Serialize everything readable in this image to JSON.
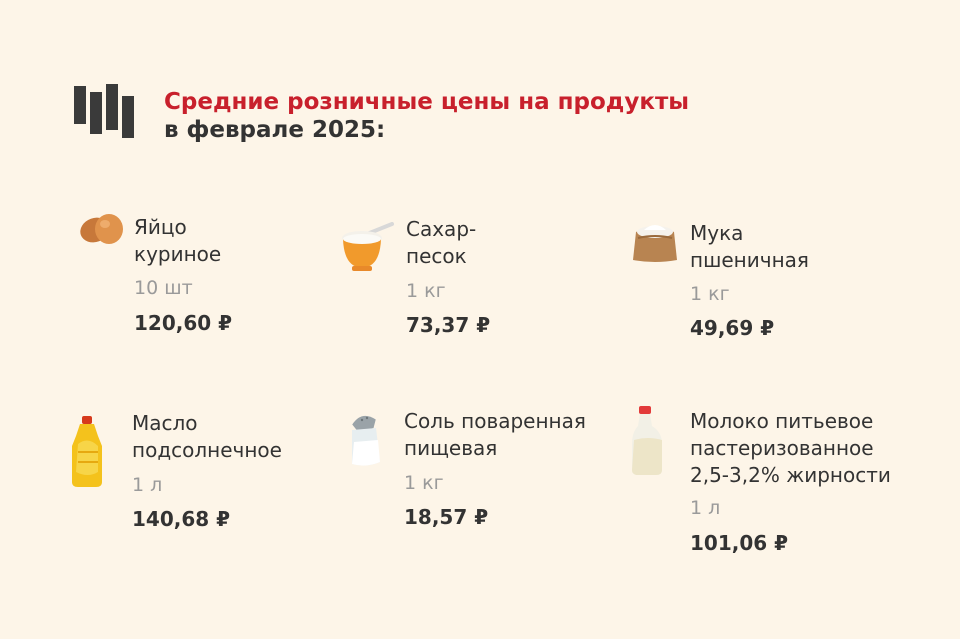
{
  "header": {
    "title_line1": "Средние розничные цены на продукты",
    "title_line2": "в феврале 2025:"
  },
  "colors": {
    "background": "#fdf5e8",
    "title_accent": "#c8202c",
    "text": "#333333",
    "quantity": "#9a9a9a"
  },
  "items": [
    {
      "name_line1": "Яйцо",
      "name_line2": "куриное",
      "quantity": "10 шт",
      "price": "120,60 ₽",
      "icon": "eggs-icon"
    },
    {
      "name_line1": "Сахар-",
      "name_line2": "песок",
      "quantity": "1 кг",
      "price": "73,37 ₽",
      "icon": "sugar-bowl-icon"
    },
    {
      "name_line1": "Мука",
      "name_line2": "пшеничная",
      "quantity": "1 кг",
      "price": "49,69 ₽",
      "icon": "flour-sack-icon"
    },
    {
      "name_line1": "Масло",
      "name_line2": "подсолнечное",
      "quantity": "1 л",
      "price": "140,68 ₽",
      "icon": "oil-bottle-icon"
    },
    {
      "name_line1": "Соль поваренная",
      "name_line2": "пищевая",
      "quantity": "1 кг",
      "price": "18,57 ₽",
      "icon": "salt-shaker-icon"
    },
    {
      "name_line1": "Молоко питьевое",
      "name_line2": "пастеризованное",
      "name_line3": "2,5-3,2% жирности",
      "quantity": "1 л",
      "price": "101,06 ₽",
      "icon": "milk-bottle-icon"
    }
  ]
}
